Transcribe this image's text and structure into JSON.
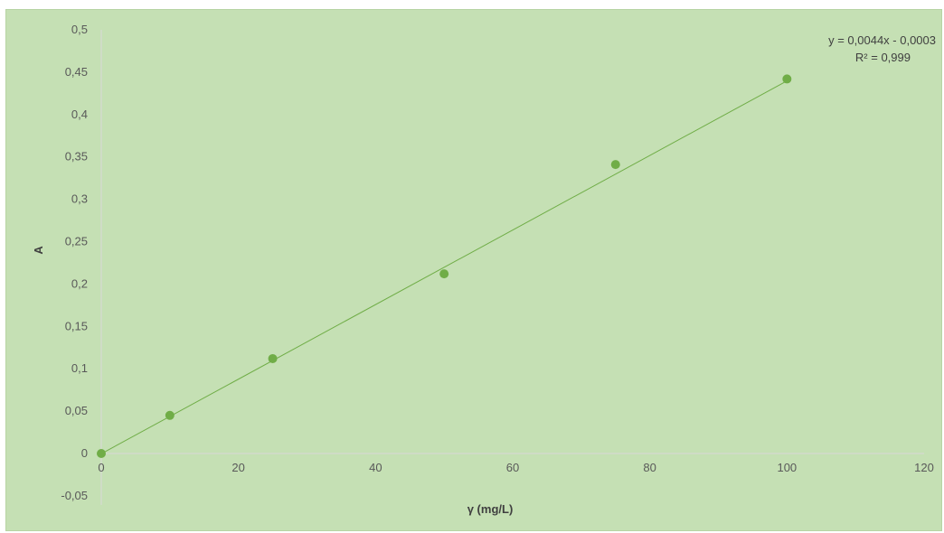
{
  "chart_data": {
    "type": "scatter",
    "title": "",
    "xlabel": "γ (mg/L)",
    "ylabel": "A",
    "xlim": [
      0,
      120
    ],
    "ylim": [
      -0.05,
      0.5
    ],
    "x_ticks": [
      "0",
      "20",
      "40",
      "60",
      "80",
      "100",
      "120"
    ],
    "y_ticks": [
      "-0,05",
      "0",
      "0,05",
      "0,1",
      "0,15",
      "0,2",
      "0,25",
      "0,3",
      "0,35",
      "0,4",
      "0,45",
      "0,5"
    ],
    "grid": false,
    "legend": "none",
    "series": [
      {
        "x": [
          0,
          10,
          25,
          50,
          75,
          100
        ],
        "y": [
          0,
          0.045,
          0.112,
          0.212,
          0.341,
          0.442
        ],
        "color": "#70ad47"
      }
    ],
    "trendline": {
      "type": "linear",
      "slope": 0.0044,
      "intercept": -0.0003,
      "equation_label": "y = 0,0044x - 0,0003",
      "r2_label": "R² = 0,999",
      "color": "#70ad47"
    },
    "background_color": "#c5e0b4"
  }
}
